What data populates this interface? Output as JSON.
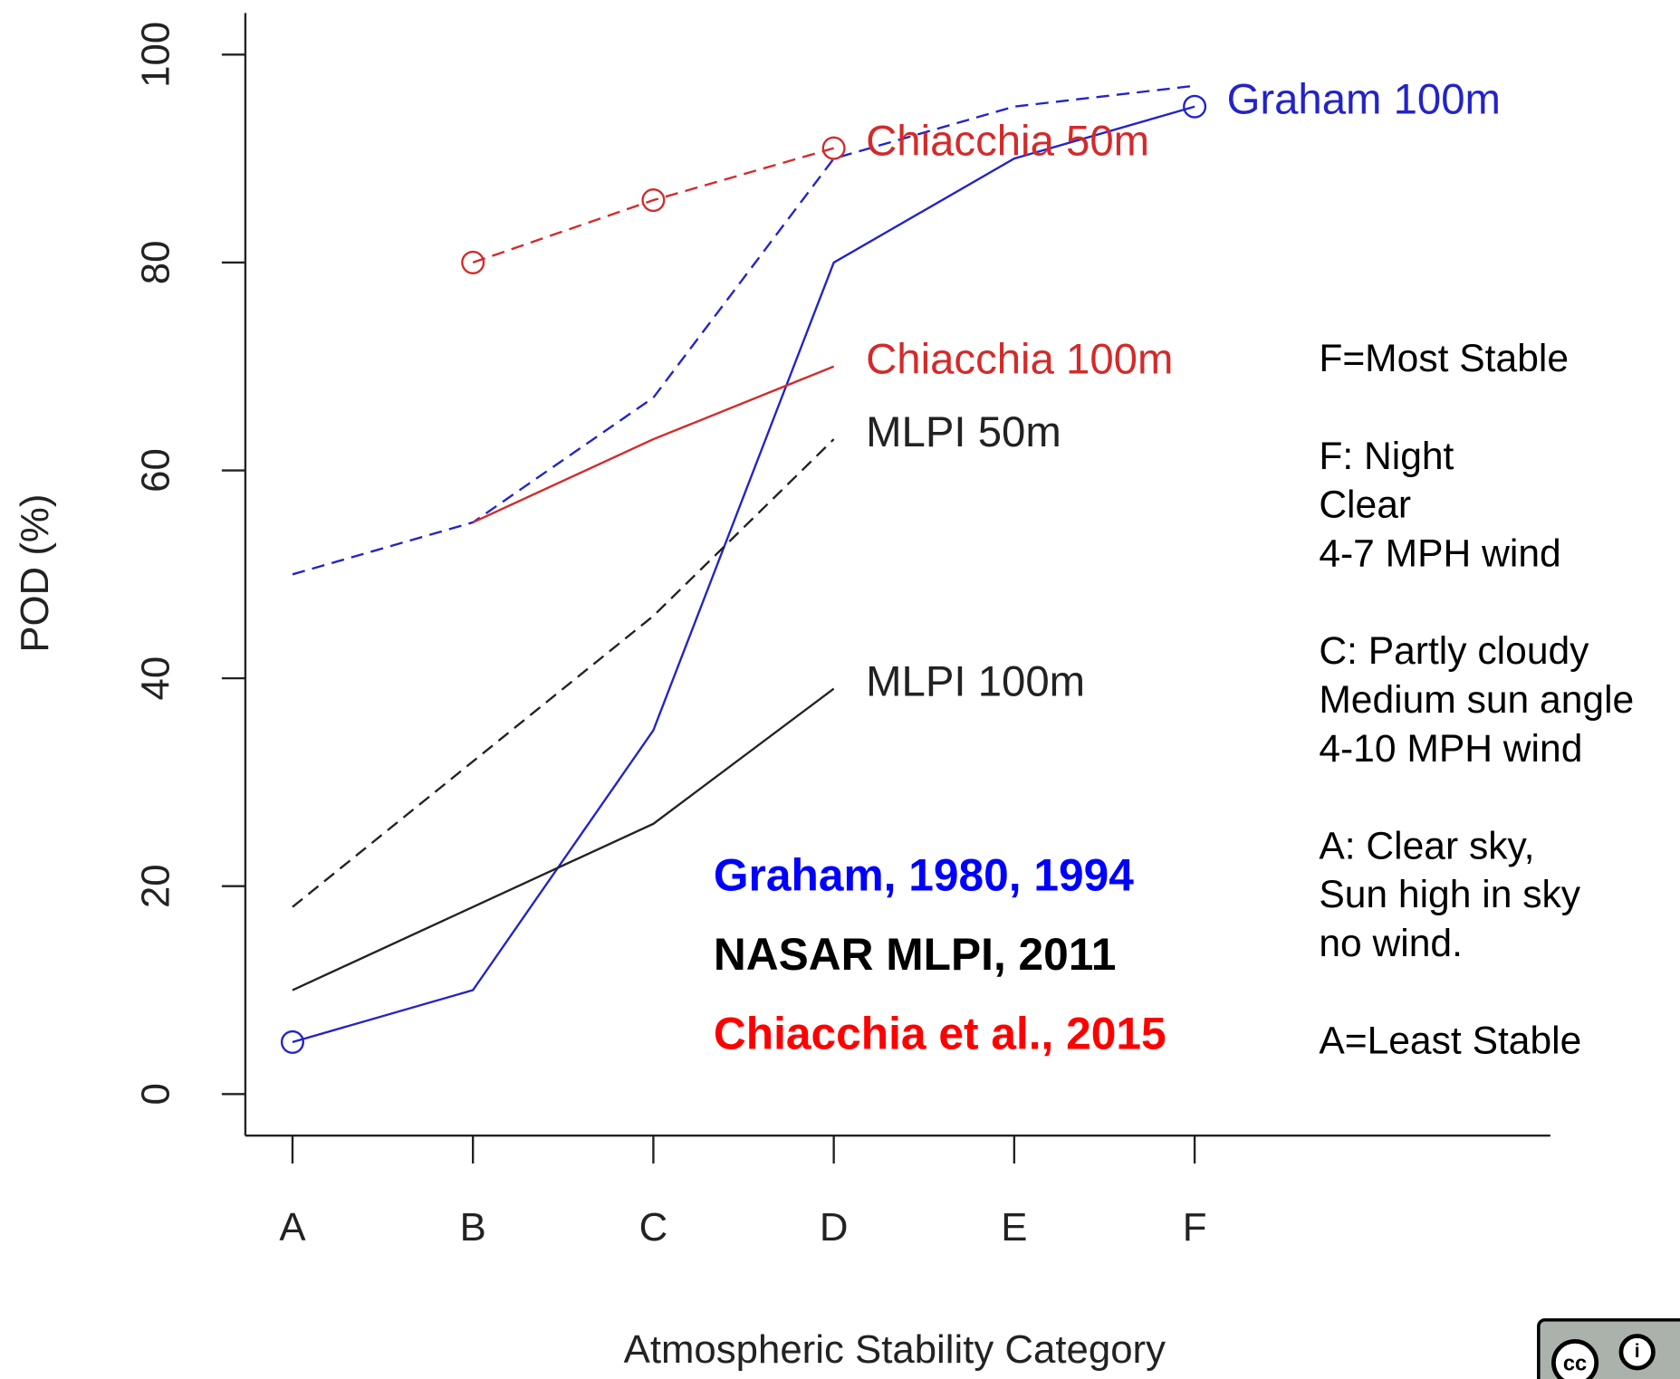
{
  "chart_data": {
    "type": "line",
    "x_label": "Atmospheric Stability Category",
    "y_label": "POD (%)",
    "categories": [
      "A",
      "B",
      "C",
      "D",
      "E",
      "F"
    ],
    "ylim": [
      -4,
      104
    ],
    "yticks": [
      0,
      20,
      40,
      60,
      80,
      100
    ],
    "series": [
      {
        "name": "Graham 100m",
        "color": "#2323c8",
        "dashed": false,
        "marker_indices": [
          0,
          5
        ],
        "values": [
          5,
          10,
          35,
          80,
          90,
          95
        ]
      },
      {
        "color": "#2323c8",
        "dashed": true,
        "values": [
          50,
          55,
          67,
          90,
          95,
          97
        ]
      },
      {
        "name": "Chiacchia 50m",
        "color": "#d42a2a",
        "dashed": true,
        "marker_indices": [
          1,
          2,
          3
        ],
        "values": [
          null,
          80,
          86,
          91,
          null,
          null
        ]
      },
      {
        "name": "Chiacchia 100m",
        "color": "#d42a2a",
        "dashed": false,
        "values": [
          null,
          55,
          63,
          70,
          null,
          null
        ]
      },
      {
        "name": "MLPI 50m",
        "color": "#222222",
        "dashed": true,
        "values": [
          18,
          32,
          46,
          63,
          null,
          null
        ]
      },
      {
        "name": "MLPI 100m",
        "color": "#222222",
        "dashed": false,
        "values": [
          10,
          18,
          26,
          39,
          null,
          null
        ]
      }
    ],
    "annotations": [
      {
        "text": "Graham, 1980, 1994",
        "color": "#0000ff"
      },
      {
        "text": "NASAR MLPI, 2011",
        "color": "#000000"
      },
      {
        "text": "Chiacchia et al., 2015",
        "color": "#ff0000"
      }
    ],
    "notes": [
      [
        "F=Most Stable"
      ],
      [
        "F: Night",
        "Clear",
        "4-7 MPH wind"
      ],
      [
        "C: Partly cloudy",
        "Medium sun angle",
        "4-10 MPH wind"
      ],
      [
        "A: Clear sky,",
        "Sun high in sky",
        "no wind."
      ],
      [
        "A=Least Stable"
      ]
    ]
  }
}
